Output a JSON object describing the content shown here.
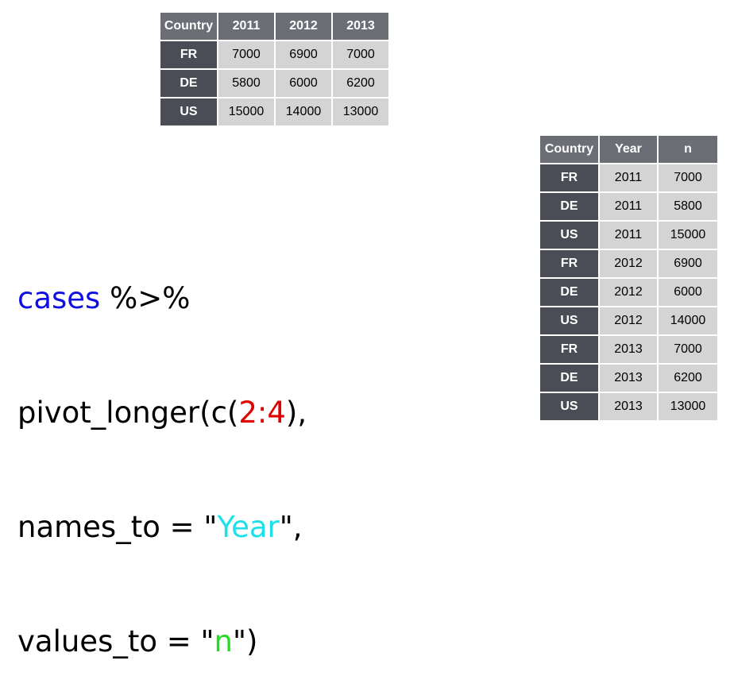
{
  "wide_table": {
    "header": [
      "Country",
      "2011",
      "2012",
      "2013"
    ],
    "rows": [
      [
        "FR",
        "7000",
        "6900",
        "7000"
      ],
      [
        "DE",
        "5800",
        "6000",
        "6200"
      ],
      [
        "US",
        "15000",
        "14000",
        "13000"
      ]
    ]
  },
  "long_table": {
    "header": [
      "Country",
      "Year",
      "n"
    ],
    "rows": [
      [
        "FR",
        "2011",
        "7000"
      ],
      [
        "DE",
        "2011",
        "5800"
      ],
      [
        "US",
        "2011",
        "15000"
      ],
      [
        "FR",
        "2012",
        "6900"
      ],
      [
        "DE",
        "2012",
        "6000"
      ],
      [
        "US",
        "2012",
        "14000"
      ],
      [
        "FR",
        "2013",
        "7000"
      ],
      [
        "DE",
        "2013",
        "6200"
      ],
      [
        "US",
        "2013",
        "13000"
      ]
    ]
  },
  "code": {
    "line1": [
      {
        "text": "cases",
        "color": "#1010e0"
      },
      {
        "text": " %>%",
        "color": "#000000"
      }
    ],
    "line2": [
      {
        "text": "pivot_longer(c(",
        "color": "#000000"
      },
      {
        "text": "2:4",
        "color": "#e00000"
      },
      {
        "text": "),",
        "color": "#000000"
      }
    ],
    "line3": [
      {
        "text": "names_to = \"",
        "color": "#000000"
      },
      {
        "text": "Year",
        "color": "#1ee0e8"
      },
      {
        "text": "\",",
        "color": "#000000"
      }
    ],
    "line4": [
      {
        "text": "values_to = \"",
        "color": "#000000"
      },
      {
        "text": "n",
        "color": "#22dd22"
      },
      {
        "text": "\")",
        "color": "#000000"
      }
    ]
  }
}
